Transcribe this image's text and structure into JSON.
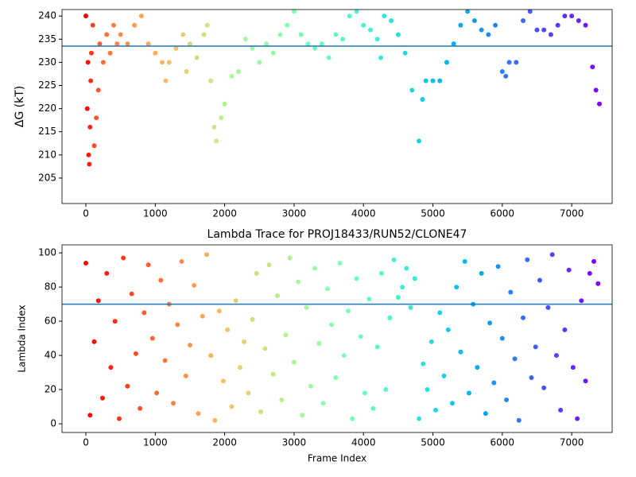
{
  "chart_data": [
    {
      "type": "scatter",
      "ylabel": "ΔG (kT)",
      "colormap": "rainbow_r",
      "hline": 233.5,
      "hline_color": "#1f77b4",
      "xlim": [
        -344,
        7583
      ],
      "ylim": [
        199.5,
        241.4
      ],
      "xticks": [
        0,
        1000,
        2000,
        3000,
        4000,
        5000,
        6000,
        7000
      ],
      "yticks": [
        205,
        210,
        215,
        220,
        225,
        230,
        235,
        240
      ],
      "x": [
        0,
        20,
        30,
        40,
        50,
        60,
        70,
        80,
        100,
        120,
        150,
        180,
        200,
        250,
        300,
        350,
        400,
        450,
        500,
        600,
        700,
        800,
        900,
        1000,
        1100,
        1150,
        1200,
        1300,
        1400,
        1450,
        1500,
        1600,
        1700,
        1750,
        1800,
        1850,
        1880,
        1950,
        2000,
        2100,
        2200,
        2300,
        2400,
        2500,
        2600,
        2700,
        2800,
        2900,
        3000,
        3100,
        3200,
        3300,
        3400,
        3500,
        3600,
        3700,
        3800,
        3900,
        4000,
        4100,
        4200,
        4250,
        4300,
        4400,
        4500,
        4600,
        4700,
        4800,
        4850,
        4900,
        5000,
        5100,
        5200,
        5300,
        5400,
        5500,
        5600,
        5700,
        5800,
        5900,
        6000,
        6050,
        6100,
        6200,
        6300,
        6400,
        6500,
        6600,
        6700,
        6800,
        6900,
        7000,
        7100,
        7200,
        7300,
        7350,
        7400
      ],
      "values": [
        240,
        220,
        230,
        210,
        208,
        216,
        226,
        232,
        238,
        212,
        218,
        224,
        234,
        230,
        236,
        232,
        238,
        234,
        236,
        234,
        238,
        240,
        234,
        232,
        230,
        226,
        230,
        233,
        236,
        228,
        234,
        231,
        236,
        238,
        226,
        216,
        213,
        218,
        221,
        227,
        228,
        235,
        233,
        230,
        234,
        232,
        236,
        238,
        241,
        236,
        234,
        233,
        234,
        231,
        236,
        235,
        240,
        241,
        238,
        237,
        235,
        231,
        240,
        239,
        236,
        232,
        224,
        213,
        222,
        226,
        226,
        226,
        230,
        234,
        238,
        241,
        239,
        237,
        236,
        238,
        228,
        227,
        230,
        230,
        239,
        241,
        237,
        237,
        236,
        238,
        240,
        240,
        239,
        238,
        229,
        224,
        221
      ]
    },
    {
      "type": "scatter",
      "title": "Lambda Trace for PROJ18433/RUN52/CLONE47",
      "xlabel": "Frame Index",
      "ylabel": "Lambda Index",
      "colormap": "rainbow_r",
      "hline": 70,
      "hline_color": "#1f77b4",
      "xlim": [
        -344,
        7583
      ],
      "ylim": [
        -5.1,
        104.7
      ],
      "xticks": [
        0,
        1000,
        2000,
        3000,
        4000,
        5000,
        6000,
        7000
      ],
      "yticks": [
        0,
        20,
        40,
        60,
        80,
        100
      ],
      "x": [
        0,
        60,
        120,
        180,
        240,
        300,
        360,
        420,
        480,
        540,
        600,
        660,
        720,
        780,
        840,
        900,
        960,
        1020,
        1080,
        1140,
        1200,
        1260,
        1320,
        1380,
        1440,
        1500,
        1560,
        1620,
        1680,
        1740,
        1800,
        1860,
        1920,
        1980,
        2040,
        2100,
        2160,
        2220,
        2280,
        2340,
        2400,
        2460,
        2520,
        2580,
        2640,
        2700,
        2760,
        2820,
        2880,
        2940,
        3000,
        3060,
        3120,
        3180,
        3240,
        3300,
        3360,
        3420,
        3480,
        3540,
        3600,
        3660,
        3720,
        3780,
        3840,
        3900,
        3960,
        4020,
        4080,
        4140,
        4200,
        4260,
        4320,
        4380,
        4440,
        4500,
        4560,
        4620,
        4680,
        4740,
        4800,
        4860,
        4920,
        4980,
        5040,
        5100,
        5160,
        5220,
        5280,
        5340,
        5400,
        5460,
        5520,
        5580,
        5640,
        5700,
        5760,
        5820,
        5880,
        5940,
        6000,
        6060,
        6120,
        6180,
        6240,
        6300,
        6360,
        6420,
        6480,
        6540,
        6600,
        6660,
        6720,
        6780,
        6840,
        6900,
        6960,
        7020,
        7080,
        7140,
        7200,
        7260,
        7320,
        7380
      ],
      "values": [
        94,
        5,
        48,
        72,
        15,
        88,
        33,
        60,
        3,
        97,
        22,
        76,
        41,
        9,
        65,
        93,
        50,
        18,
        84,
        37,
        70,
        12,
        58,
        95,
        28,
        46,
        81,
        6,
        63,
        99,
        40,
        2,
        66,
        25,
        55,
        10,
        72,
        33,
        48,
        18,
        61,
        88,
        7,
        44,
        93,
        29,
        75,
        14,
        52,
        97,
        36,
        83,
        5,
        68,
        22,
        91,
        47,
        12,
        79,
        58,
        27,
        94,
        40,
        66,
        3,
        85,
        51,
        18,
        73,
        9,
        45,
        88,
        20,
        62,
        96,
        74,
        80,
        91,
        68,
        85,
        3,
        35,
        20,
        48,
        8,
        65,
        28,
        55,
        12,
        80,
        42,
        95,
        18,
        70,
        33,
        88,
        6,
        59,
        24,
        92,
        50,
        14,
        77,
        38,
        2,
        62,
        96,
        27,
        45,
        84,
        21,
        68,
        99,
        40,
        8,
        55,
        90,
        33,
        3,
        72,
        25,
        88,
        95,
        82
      ]
    }
  ]
}
